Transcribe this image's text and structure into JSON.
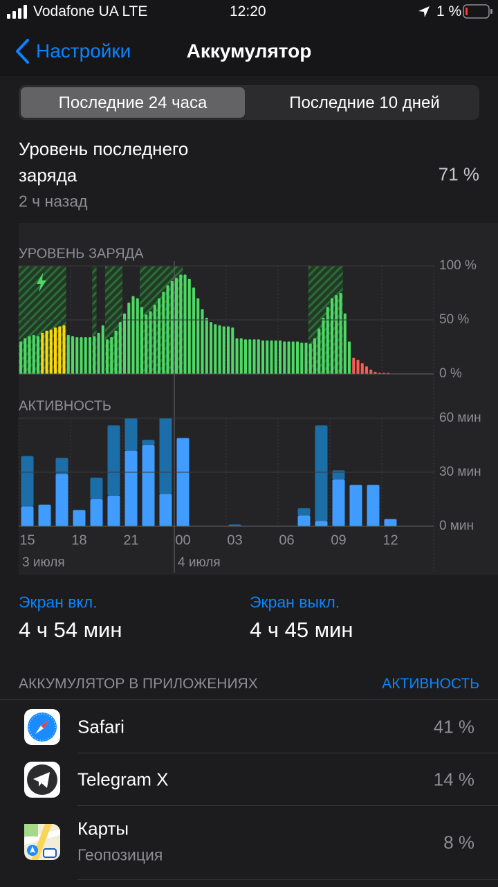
{
  "status_bar": {
    "carrier": "Vodafone UA LTE",
    "time": "12:20",
    "battery": "1 %"
  },
  "nav": {
    "back": "Настройки",
    "title": "Аккумулятор"
  },
  "segments": [
    "Последние 24 часа",
    "Последние 10 дней"
  ],
  "last_charge": {
    "label": "Уровень последнего заряда",
    "ago": "2 ч назад",
    "value": "71 %"
  },
  "chart_data": [
    {
      "type": "bar",
      "title": "УРОВЕНЬ ЗАРЯДА",
      "values": [
        30,
        33,
        35,
        36,
        35,
        38,
        40,
        41,
        43,
        44,
        45,
        36,
        35,
        34,
        34,
        34,
        34,
        35,
        38,
        45,
        32,
        34,
        40,
        48,
        56,
        66,
        72,
        70,
        62,
        55,
        58,
        64,
        70,
        76,
        82,
        86,
        89,
        92,
        92,
        88,
        80,
        70,
        60,
        52,
        48,
        46,
        45,
        44,
        44,
        43,
        33,
        33,
        32,
        32,
        32,
        32,
        31,
        31,
        31,
        31,
        31,
        30,
        30,
        30,
        30,
        29,
        29,
        28,
        33,
        42,
        52,
        62,
        70,
        73,
        75,
        56,
        30,
        15,
        13,
        10,
        7,
        4,
        2,
        1,
        1,
        1,
        null,
        null,
        null,
        null,
        null,
        null,
        null,
        null,
        null,
        null
      ],
      "colors": [
        "#4cd964",
        "#4cd964",
        "#4cd964",
        "#4cd964",
        "#4cd964",
        "#ffd60a",
        "#ffd60a",
        "#ffd60a",
        "#ffd60a",
        "#ffd60a",
        "#ffd60a",
        "#4cd964",
        "#4cd964",
        "#4cd964",
        "#4cd964",
        "#4cd964",
        "#4cd964",
        "#4cd964",
        "#4cd964",
        "#4cd964",
        "#4cd964",
        "#4cd964",
        "#4cd964",
        "#4cd964",
        "#4cd964",
        "#4cd964",
        "#4cd964",
        "#4cd964",
        "#4cd964",
        "#4cd964",
        "#4cd964",
        "#4cd964",
        "#4cd964",
        "#4cd964",
        "#4cd964",
        "#4cd964",
        "#4cd964",
        "#4cd964",
        "#4cd964",
        "#4cd964",
        "#4cd964",
        "#4cd964",
        "#4cd964",
        "#4cd964",
        "#4cd964",
        "#4cd964",
        "#4cd964",
        "#4cd964",
        "#4cd964",
        "#4cd964",
        "#4cd964",
        "#4cd964",
        "#4cd964",
        "#4cd964",
        "#4cd964",
        "#4cd964",
        "#4cd964",
        "#4cd964",
        "#4cd964",
        "#4cd964",
        "#4cd964",
        "#4cd964",
        "#4cd964",
        "#4cd964",
        "#4cd964",
        "#4cd964",
        "#4cd964",
        "#4cd964",
        "#4cd964",
        "#4cd964",
        "#4cd964",
        "#4cd964",
        "#4cd964",
        "#4cd964",
        "#4cd964",
        "#4cd964",
        "#4cd964",
        "#ff5a52",
        "#ff5a52",
        "#ff5a52",
        "#ff5a52",
        "#ff5a52",
        "#ff5a52",
        "#ff5a52",
        "#ff5a52",
        "#ff5a52",
        null,
        null,
        null,
        null,
        null,
        null,
        null,
        null,
        null,
        null
      ],
      "charging": [
        [
          0,
          10
        ],
        [
          17,
          17
        ],
        [
          20,
          23
        ],
        [
          28,
          37
        ],
        [
          67,
          74
        ]
      ],
      "ylim": [
        0,
        100
      ],
      "yticks": [
        {
          "value": 0,
          "label": "0 %"
        },
        {
          "value": 50,
          "label": "50 %"
        },
        {
          "value": 100,
          "label": "100 %"
        }
      ],
      "grid": true
    },
    {
      "type": "stacked_bar",
      "title": "АКТИВНОСТЬ",
      "categories": [
        "15",
        null,
        null,
        "18",
        null,
        null,
        "21",
        null,
        null,
        "00",
        null,
        null,
        "03",
        null,
        null,
        "06",
        null,
        null,
        "09",
        null,
        null,
        "12",
        null,
        null
      ],
      "date_labels": [
        {
          "label": "3 июля",
          "index": 0
        },
        {
          "label": "4 июля",
          "index": 9
        }
      ],
      "series": [
        {
          "color": "#409cff",
          "values": [
            11,
            12,
            29,
            9,
            15,
            17,
            42,
            45,
            18,
            49,
            0,
            0,
            0,
            0,
            0,
            0,
            6,
            3,
            26,
            23,
            23,
            4,
            null,
            null
          ]
        },
        {
          "color": "#1b6ea8",
          "values": [
            28,
            0,
            9,
            0,
            12,
            39,
            18,
            3,
            42,
            0,
            0,
            0,
            1,
            0,
            0,
            0,
            4,
            53,
            5,
            0,
            0,
            0,
            null,
            null
          ]
        }
      ],
      "ylim": [
        0,
        60
      ],
      "yticks": [
        {
          "value": 0,
          "label": "0 мин"
        },
        {
          "value": 30,
          "label": "30 мин"
        },
        {
          "value": 60,
          "label": "60 мин"
        }
      ],
      "grid": true
    }
  ],
  "screen": {
    "on_label": "Экран вкл.",
    "on_value": "4 ч 54 мин",
    "off_label": "Экран выкл.",
    "off_value": "4 ч 45 мин"
  },
  "apps": {
    "header": "АККУМУЛЯТОР В ПРИЛОЖЕНИЯХ",
    "toggle": "АКТИВНОСТЬ",
    "rows": [
      {
        "name": "Safari",
        "value": "41 %"
      },
      {
        "name": "Telegram X",
        "value": "14 %"
      },
      {
        "name": "Карты",
        "sub": "Геопозиция",
        "value": "8 %"
      }
    ]
  }
}
